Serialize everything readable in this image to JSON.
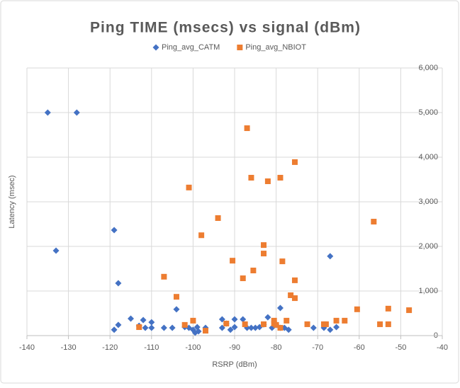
{
  "chart_data": {
    "type": "scatter",
    "title": "Ping TIME (msecs) vs signal (dBm)",
    "x_label": "RSRP (dBm)",
    "y_label": "Latency (msec)",
    "xlim": [
      -140,
      -40
    ],
    "xticks": [
      -140,
      -130,
      -120,
      -110,
      -100,
      -90,
      -80,
      -70,
      -60,
      -50,
      -40
    ],
    "ylim": [
      0,
      6000
    ],
    "yticks": [
      0,
      {
        "value": 1000,
        "label": "1,000"
      },
      {
        "value": 2000,
        "label": "2,000"
      },
      {
        "value": 3000,
        "label": "3,000"
      },
      {
        "value": 4000,
        "label": "4,000"
      },
      {
        "value": 5000,
        "label": "5,000"
      },
      {
        "value": 6000,
        "label": "6,000"
      }
    ],
    "grid": true,
    "series": [
      {
        "name": "Ping_avg_CATM",
        "color": "#4472c4",
        "marker": "diamond",
        "x": [
          -135,
          -128,
          -133,
          -119,
          -118,
          -67,
          -79,
          -104,
          -119,
          -118,
          -115,
          -113,
          -112,
          -111.5,
          -110,
          -110,
          -107,
          -105,
          -102,
          -101,
          -100,
          -99.5,
          -99,
          -98.7,
          -97,
          -93,
          -93,
          -92,
          -91,
          -90,
          -90,
          -88,
          -87,
          -86,
          -85,
          -84,
          -83,
          -82,
          -81,
          -80,
          -79,
          -78,
          -77,
          -71,
          -68.5,
          -67,
          -65.5
        ],
        "values": [
          5000,
          5000,
          1905,
          2365,
          1175,
          1780,
          620,
          590,
          130,
          240,
          380,
          220,
          350,
          175,
          175,
          300,
          175,
          175,
          190,
          175,
          130,
          65,
          190,
          95,
          175,
          365,
          175,
          270,
          130,
          365,
          190,
          365,
          175,
          175,
          175,
          190,
          250,
          410,
          175,
          240,
          175,
          175,
          130,
          175,
          175,
          130,
          190
        ]
      },
      {
        "name": "Ping_avg_NBIOT",
        "color": "#ed7d31",
        "marker": "square",
        "x": [
          -101,
          -104,
          -107,
          -98,
          -94,
          -87,
          -86,
          -82,
          -79,
          -75.5,
          -83,
          -83,
          -78.5,
          -90.5,
          -85.5,
          -88,
          -75.5,
          -76.5,
          -75.5,
          -56.5,
          -113,
          -102,
          -100,
          -97,
          -92,
          -87.5,
          -83,
          -80.5,
          -80.5,
          -80,
          -79,
          -77.5,
          -72.5,
          -68.5,
          -68,
          -65.5,
          -63.5,
          -60.5,
          -55,
          -53,
          -53,
          -48
        ],
        "values": [
          3320,
          870,
          1320,
          2250,
          2635,
          4650,
          3540,
          3460,
          3540,
          3890,
          2030,
          1840,
          1665,
          1680,
          1460,
          1285,
          1240,
          905,
          840,
          2555,
          190,
          240,
          335,
          110,
          270,
          255,
          255,
          335,
          270,
          240,
          175,
          335,
          255,
          255,
          255,
          335,
          335,
          590,
          255,
          255,
          605,
          570
        ]
      }
    ]
  }
}
